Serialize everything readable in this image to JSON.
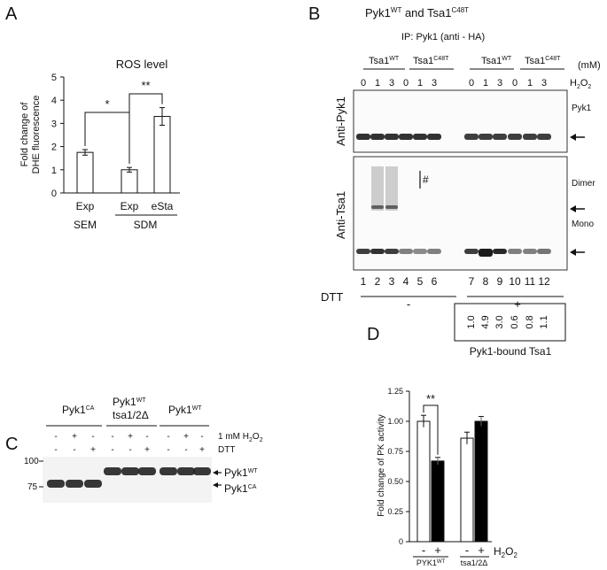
{
  "panels": {
    "A": {
      "letter": "A",
      "chart_data": {
        "type": "bar",
        "title": "ROS level",
        "ylabel_lines": [
          "Fold change of",
          "DHE fluorescence"
        ],
        "yticks": [
          0,
          1,
          2,
          3,
          4,
          5
        ],
        "ylim": [
          0,
          5
        ],
        "categories": [
          "Exp",
          "Exp",
          "eSta"
        ],
        "groups": [
          {
            "label": "SEM",
            "members": [
              0
            ]
          },
          {
            "label": "SDM",
            "members": [
              1,
              2
            ]
          }
        ],
        "values": [
          1.75,
          1.0,
          3.3
        ],
        "errors": [
          0.12,
          0.1,
          0.38
        ],
        "bar_color": "#ffffff",
        "significance": [
          {
            "label": "*",
            "between": [
              0,
              1
            ]
          },
          {
            "label": "**",
            "between": [
              1,
              2
            ]
          }
        ]
      }
    },
    "B": {
      "letter": "B",
      "title_main": "Pyk1",
      "title_sup1": "WT",
      "title_mid": " and Tsa1",
      "title_sup2": "C48T",
      "ip_label": "IP: Pyk1 (anti - HA)",
      "groups": [
        {
          "name": "Tsa1",
          "sup": "WT"
        },
        {
          "name": "Tsa1",
          "sup": "C48T"
        },
        {
          "name": "Tsa1",
          "sup": "WT"
        },
        {
          "name": "Tsa1",
          "sup": "C48T"
        }
      ],
      "unit": "(mM)",
      "h2o2_label": "H",
      "h2o2_sub1": "2",
      "h2o2_o": "O",
      "h2o2_sub2": "2",
      "concentrations": [
        "0",
        "1",
        "3",
        "0",
        "1",
        "3",
        "0",
        "1",
        "3",
        "0",
        "1",
        "3"
      ],
      "anti_pyk1_label": "Anti-Pyk1",
      "anti_tsa1_label": "Anti-Tsa1",
      "pyk1_band_label": "Pyk1",
      "dimer_label": "Dimer",
      "mono_label": "Mono",
      "hash_label": "#",
      "lanes": [
        "1",
        "2",
        "3",
        "4",
        "5",
        "6",
        "7",
        "8",
        "9",
        "10",
        "11",
        "12"
      ],
      "dtt_label": "DTT",
      "dtt_minus": "-",
      "dtt_plus": "+",
      "quant_values": [
        "1.0",
        "4.9",
        "3.0",
        "0.6",
        "0.8",
        "1.1"
      ],
      "quant_caption": "Pyk1-bound Tsa1"
    },
    "C": {
      "letter": "C",
      "groups": [
        {
          "name": "Pyk1",
          "sup": "CA",
          "line2": ""
        },
        {
          "name": "Pyk1",
          "sup": "WT",
          "line2": "tsa1/2Δ"
        },
        {
          "name": "Pyk1",
          "sup": "WT",
          "line2": ""
        }
      ],
      "row1_label": "1 mM H",
      "row1_sub": "2",
      "row1_o": "O",
      "row1_sub2": "2",
      "row1_signs": [
        "-",
        "+",
        "-",
        "-",
        "+",
        "-",
        "-",
        "+",
        "-"
      ],
      "row2_label": "DTT",
      "row2_signs": [
        "-",
        "-",
        "+",
        "-",
        "-",
        "+",
        "-",
        "-",
        "+"
      ],
      "mw_markers": [
        "100",
        "75"
      ],
      "band_wt_name": "Pyk1",
      "band_wt_sup": "WT",
      "band_ca_name": "Pyk1",
      "band_ca_sup": "CA"
    },
    "D": {
      "letter": "D",
      "chart_data": {
        "type": "bar",
        "ylabel": "Fold change of PK activity",
        "yticks": [
          "0",
          "0.25",
          "0.50",
          "0.75",
          "1.00",
          "1.25"
        ],
        "ylim": [
          0,
          1.25
        ],
        "categories": [
          "PYK1",
          "tsa1/2Δ"
        ],
        "category_sup": [
          "WT",
          ""
        ],
        "series": [
          {
            "name": "-",
            "color": "#ffffff",
            "values": [
              1.0,
              0.86
            ],
            "errors": [
              0.05,
              0.05
            ]
          },
          {
            "name": "+",
            "color": "#000000",
            "values": [
              0.67,
              1.0
            ],
            "errors": [
              0.03,
              0.04
            ]
          }
        ],
        "x_signs": [
          "-",
          "+",
          "-",
          "+"
        ],
        "treatment_label": "H",
        "treatment_sub": "2",
        "treatment_o": "O",
        "treatment_sub2": "2",
        "significance": [
          {
            "label": "**",
            "between": [
              0,
              1
            ]
          }
        ]
      }
    }
  }
}
